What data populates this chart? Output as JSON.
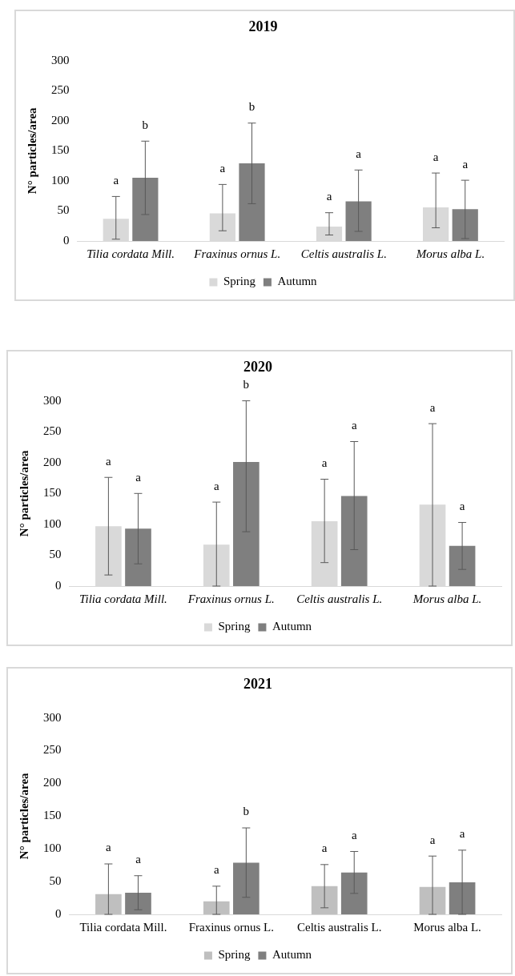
{
  "chart_data": [
    {
      "type": "bar",
      "title": "2019",
      "ylabel": "N° particles/area",
      "categories": [
        "Tilia cordata Mill.",
        "Fraxinus ornus L.",
        "Celtis australis L.",
        "Morus alba L."
      ],
      "ylim": [
        0,
        300
      ],
      "yticks": [
        0,
        50,
        100,
        150,
        200,
        250,
        300
      ],
      "grid": false,
      "legend": "bottom",
      "series": [
        {
          "name": "Spring",
          "color": "#d9d9d9",
          "values": [
            37,
            46,
            24,
            56
          ],
          "errors": [
            [
              3,
              74
            ],
            [
              17,
              94
            ],
            [
              10,
              47
            ],
            [
              22,
              113
            ]
          ]
        },
        {
          "name": "Autumn",
          "color": "#7f7f7f",
          "values": [
            105,
            129,
            66,
            53
          ],
          "errors": [
            [
              44,
              166
            ],
            [
              62,
              196
            ],
            [
              16,
              118
            ],
            [
              4,
              101
            ]
          ]
        }
      ],
      "annotations": [
        "a",
        "b",
        "a",
        "b",
        "a",
        "a",
        "a",
        "a"
      ]
    },
    {
      "type": "bar",
      "title": "2020",
      "ylabel": "N° particles/area",
      "categories": [
        "Tilia cordata Mill.",
        "Fraxinus ornus L.",
        "Celtis australis L.",
        "Morus alba L."
      ],
      "ylim": [
        0,
        300
      ],
      "yticks": [
        0,
        50,
        100,
        150,
        200,
        250,
        300
      ],
      "grid": false,
      "legend": "bottom",
      "series": [
        {
          "name": "Spring",
          "color": "#d9d9d9",
          "values": [
            97,
            67,
            105,
            132
          ],
          "errors": [
            [
              18,
              176
            ],
            [
              0,
              136
            ],
            [
              38,
              173
            ],
            [
              0,
              263
            ]
          ]
        },
        {
          "name": "Autumn",
          "color": "#7f7f7f",
          "values": [
            93,
            201,
            146,
            65
          ],
          "errors": [
            [
              36,
              150
            ],
            [
              88,
              300
            ],
            [
              59,
              234
            ],
            [
              27,
              103
            ]
          ]
        }
      ],
      "annotations": [
        "a",
        "a",
        "a",
        "b",
        "a",
        "a",
        "a",
        "a"
      ]
    },
    {
      "type": "bar",
      "title": "2021",
      "ylabel": "N° particles/area",
      "categories": [
        "Tilia cordata Mill.",
        "Fraxinus ornus L.",
        "Celtis australis L.",
        "Morus alba L."
      ],
      "ylim": [
        0,
        300
      ],
      "yticks": [
        0,
        50,
        100,
        150,
        200,
        250,
        300
      ],
      "grid": false,
      "legend": "bottom",
      "series": [
        {
          "name": "Spring",
          "color": "#bfbfbf",
          "values": [
            31,
            20,
            43,
            42
          ],
          "errors": [
            [
              0,
              77
            ],
            [
              0,
              43
            ],
            [
              10,
              76
            ],
            [
              0,
              89
            ]
          ]
        },
        {
          "name": "Autumn",
          "color": "#7f7f7f",
          "values": [
            33,
            79,
            64,
            49
          ],
          "errors": [
            [
              7,
              59
            ],
            [
              26,
              132
            ],
            [
              32,
              96
            ],
            [
              0,
              98
            ]
          ]
        }
      ],
      "annotations": [
        "a",
        "a",
        "a",
        "b",
        "a",
        "a",
        "a",
        "a"
      ]
    }
  ]
}
